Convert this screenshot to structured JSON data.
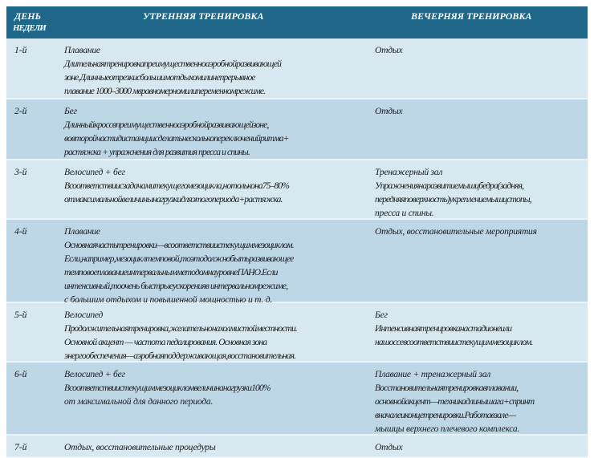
{
  "header": {
    "day_line1": "ДЕНЬ",
    "day_line2": "НЕДЕЛИ",
    "morning": "УТРЕННЯЯ ТРЕНИРОВКА",
    "evening": "ВЕЧЕРНЯЯ ТРЕНИРОВКА"
  },
  "rows": [
    {
      "day": "1-й",
      "morning": [
        "Плавание",
        "Длительнаятренировкапреимущественноаэробнойразвивающей",
        "зоне.Длинныеотрезкисбольшимотдыхомилинепрерывное",
        "плавание 1000–3000 мвравномерномилипеременномрежиме."
      ],
      "evening": [
        "Отдых"
      ]
    },
    {
      "day": "2-й",
      "morning": [
        "Бег",
        "Длинныйкроссвпреимущественноаэробнойразвивающейзоне,",
        "вовторойчастидистанциисделатьнесколькопереключенийритма+",
        "растяжка + упражнения для развития пресса и спины."
      ],
      "evening": [
        "Отдых"
      ]
    },
    {
      "day": "3-й",
      "morning": [
        "Велосипед + бег",
        "Всоответствиисзадачамитекущегомезоцикла,нотольконa75–80%",
        "отмаксимальнойвеличинынагрузкидляэтогопериода+растяжка."
      ],
      "evening": [
        "Тренажерный зал",
        "Упражнениянаразвитиемышцбедра(задняя,",
        "передняяповерхность)укреплениемышцстопы,",
        "пресса и спины."
      ]
    },
    {
      "day": "4-й",
      "morning": [
        "Плавание",
        "Основнаячастьтренировки—всоответствиистекущиммезоциклом.",
        "Если,например,мезоциклтемповой,тоэтодолжнобытьразвивающее",
        "темповоеплаваниеинтервальнымметодомнауровнеПАНО.Если",
        "интенсивный,тоочень быстрыеускоренияв интервальномрежиме,",
        "с большим отдыхом и повышенной мощностью и т. д."
      ],
      "evening": [
        "Отдых, восстановительные мероприятия"
      ]
    },
    {
      "day": "5-й",
      "morning": [
        "Велосипед",
        "Продолжительнаятренировка,желательнонахолмистойместности.",
        "Основной акцент — частота педалирования. Основная зона",
        "энергообеспечения—аэробнаяподдерживающая,восстановительная."
      ],
      "evening": [
        "Бег",
        "Интенсивнаятренировканастадионеили",
        "нашоссевсоответствиистекущиммезоциклом."
      ]
    },
    {
      "day": "6-й",
      "morning": [
        "Велосипед + бег",
        "Всоответствиистекущиммезоцикломвеличинанагрузки100%",
        "от максимальной для данного периода."
      ],
      "evening": [
        "Плавание + тренажерный зал",
        "Восстановительнаятренировкавплавании,",
        "основнойакцент—техникадлинышага+спринт",
        "вначалеиконцетренировки.Работавзале—",
        "мышцы верхнего плечевого комплекса."
      ]
    },
    {
      "day": "7-й",
      "morning": [
        "Отдых, восстановительные процедуры"
      ],
      "evening": [
        "Отдых"
      ]
    }
  ]
}
